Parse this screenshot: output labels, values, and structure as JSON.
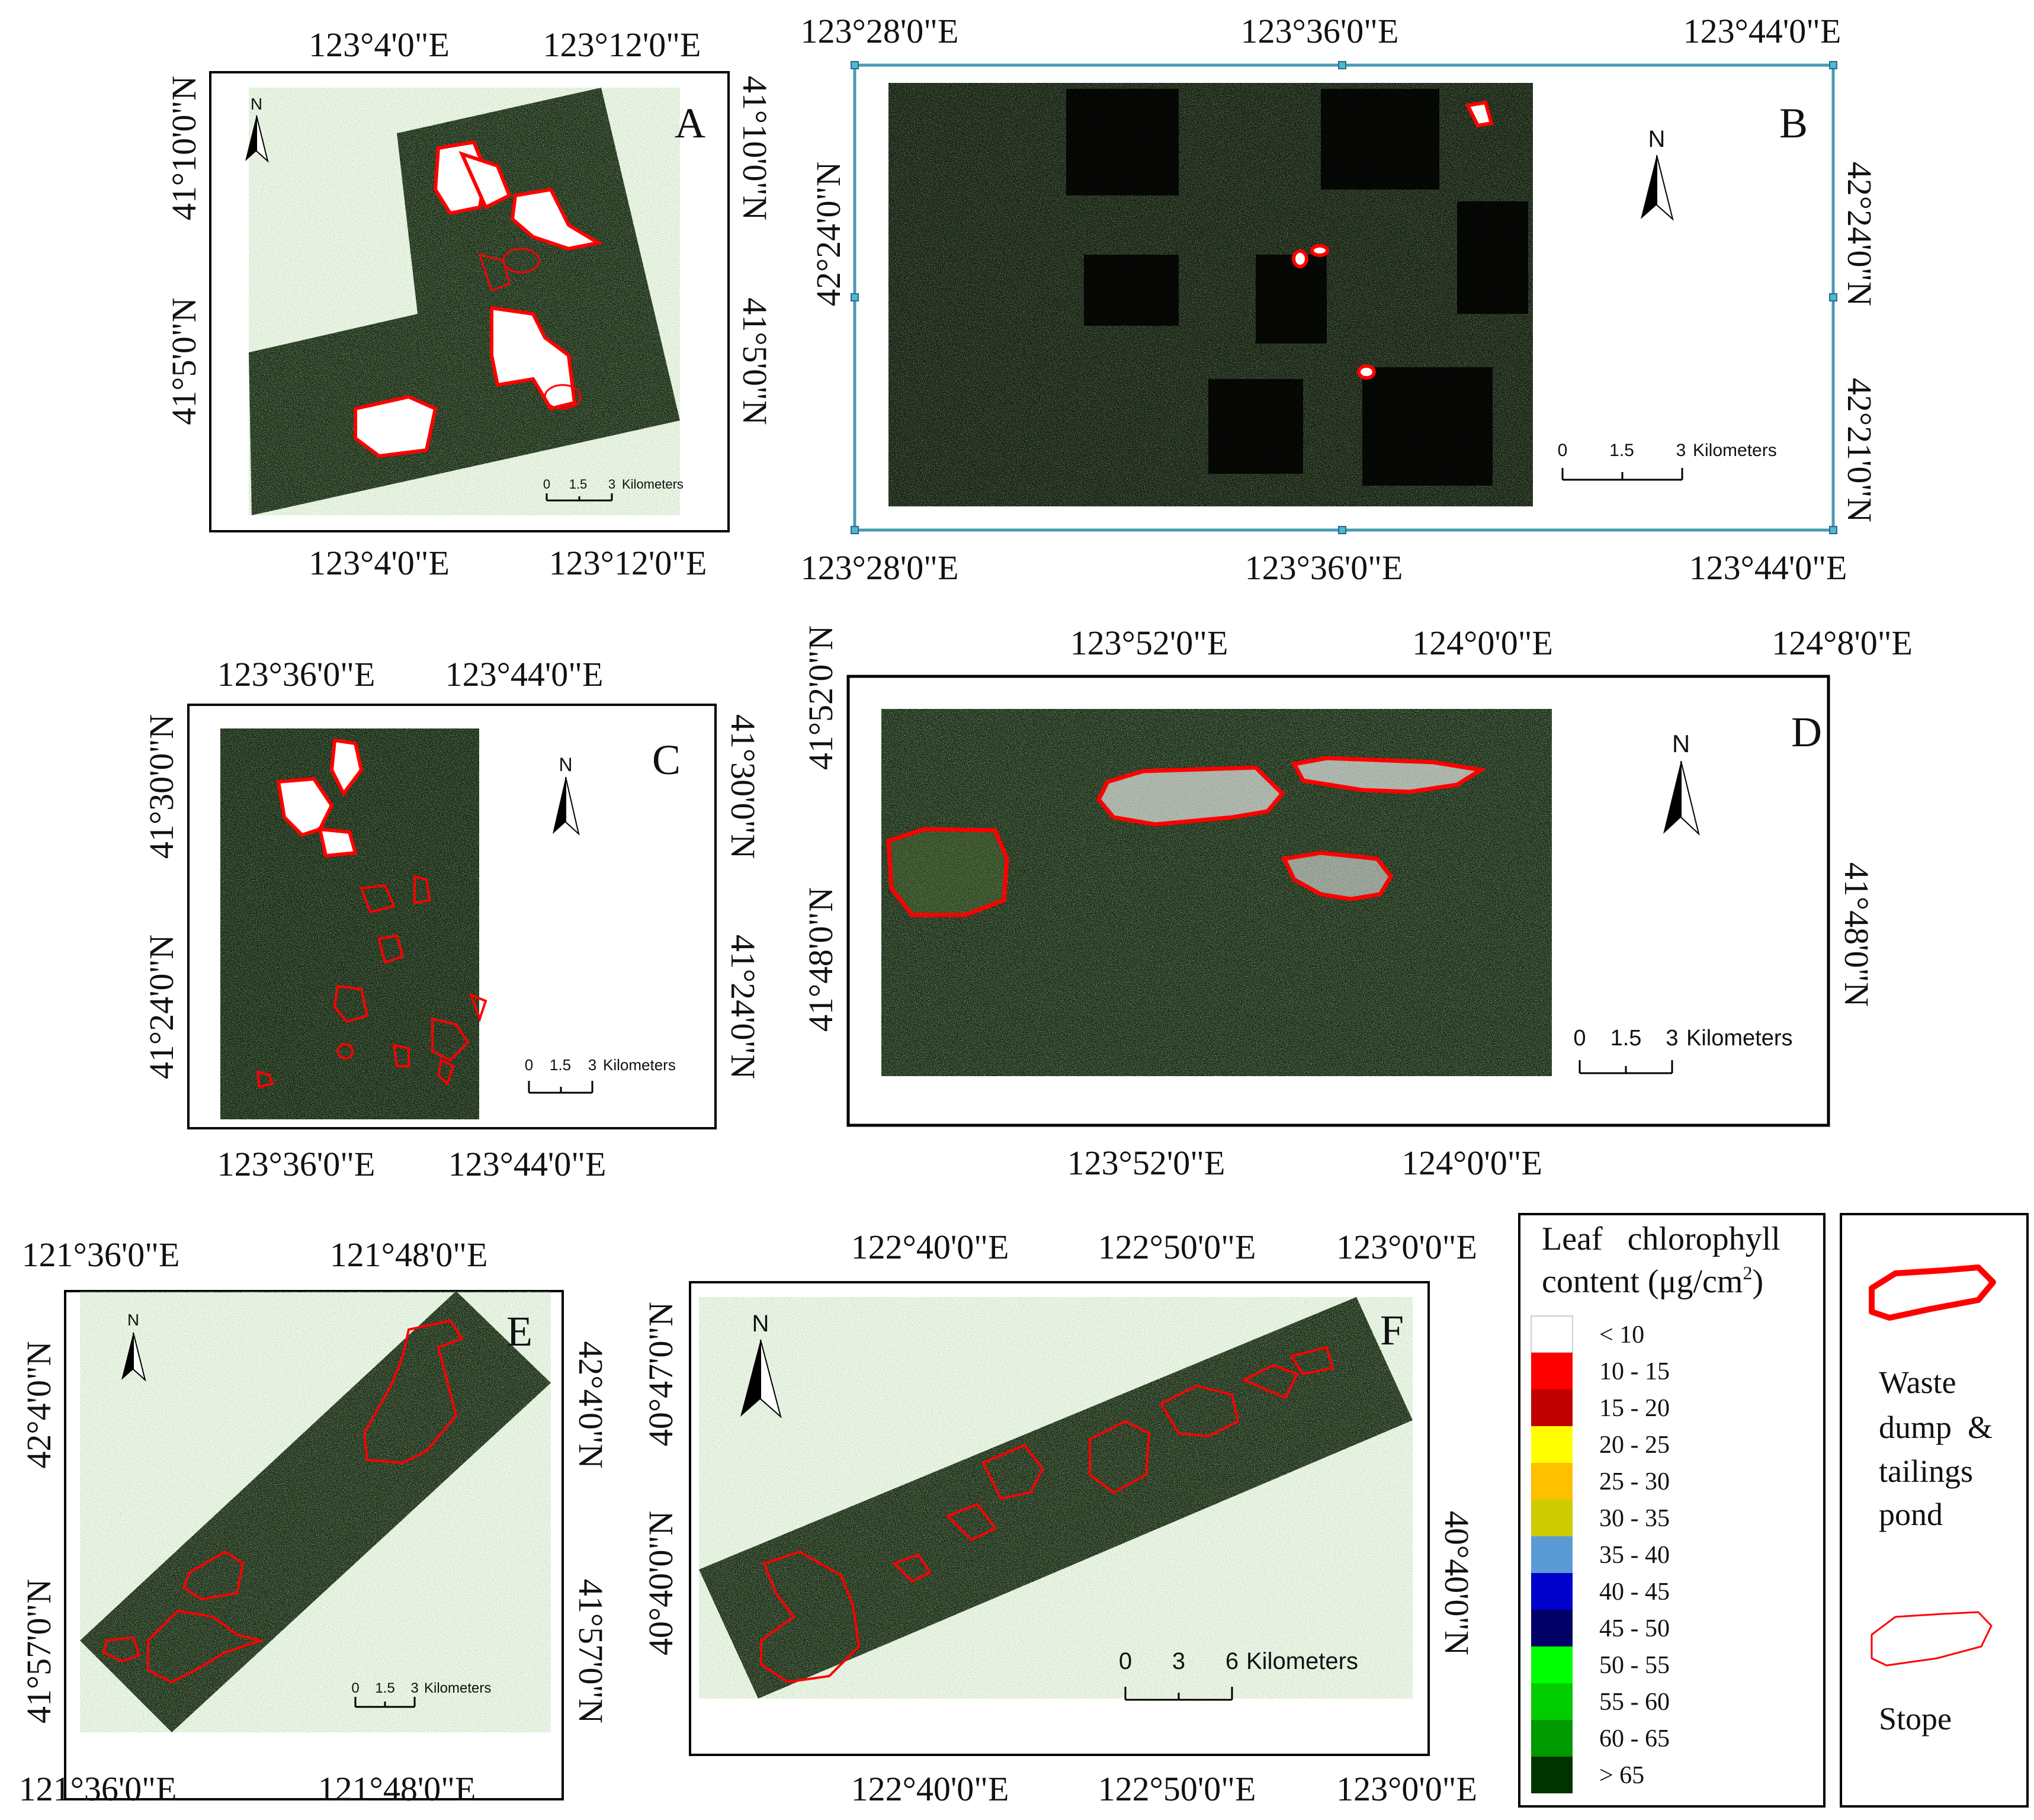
{
  "panels": [
    {
      "id": "A",
      "north": "N",
      "top_labels": [
        "123°4'0\"E",
        "123°12'0\"E"
      ],
      "bottom_labels": [
        "123°4'0\"E",
        "123°12'0\"E"
      ],
      "left_labels": [
        "41°10'0\"N",
        "41°5'0\"N"
      ],
      "right_labels": [
        "41°10'0\"N",
        "41°5'0\"N"
      ],
      "scale": {
        "ticks": [
          "0",
          "1.5",
          "3"
        ],
        "unit": "Kilometers"
      }
    },
    {
      "id": "B",
      "north": "N",
      "top_labels": [
        "123°28'0\"E",
        "123°36'0\"E",
        "123°44'0\"E"
      ],
      "bottom_labels": [
        "123°28'0\"E",
        "123°36'0\"E",
        "123°44'0\"E"
      ],
      "left_labels": [
        "42°24'0\"N"
      ],
      "right_labels": [
        "42°24'0\"N",
        "42°21'0\"N"
      ],
      "scale": {
        "ticks": [
          "0",
          "1.5",
          "3"
        ],
        "unit": "Kilometers"
      }
    },
    {
      "id": "C",
      "north": "N",
      "top_labels": [
        "123°36'0\"E",
        "123°44'0\"E"
      ],
      "bottom_labels": [
        "123°36'0\"E",
        "123°44'0\"E"
      ],
      "left_labels": [
        "41°30'0\"N",
        "41°24'0\"N"
      ],
      "right_labels": [
        "41°30'0\"N",
        "41°24'0\"N"
      ],
      "scale": {
        "ticks": [
          "0",
          "1.5",
          "3"
        ],
        "unit": "Kilometers"
      }
    },
    {
      "id": "D",
      "north": "N",
      "top_labels": [
        "123°52'0\"E",
        "124°0'0\"E",
        "124°8'0\"E"
      ],
      "bottom_labels": [
        "123°52'0\"E",
        "124°0'0\"E"
      ],
      "left_labels": [
        "41°52'0\"N",
        "41°48'0\"N"
      ],
      "right_labels": [
        "41°48'0\"N"
      ],
      "scale": {
        "ticks": [
          "0",
          "1.5",
          "3"
        ],
        "unit": "Kilometers"
      }
    },
    {
      "id": "E",
      "north": "N",
      "top_labels": [
        "121°36'0\"E",
        "121°48'0\"E"
      ],
      "bottom_labels": [
        "121°36'0\"E",
        "121°48'0\"E"
      ],
      "left_labels": [
        "42°4'0\"N",
        "41°57'0\"N"
      ],
      "right_labels": [
        "42°4'0\"N",
        "41°57'0\"N"
      ],
      "scale": {
        "ticks": [
          "0",
          "1.5",
          "3"
        ],
        "unit": "Kilometers"
      }
    },
    {
      "id": "F",
      "north": "N",
      "top_labels": [
        "122°40'0\"E",
        "122°50'0\"E",
        "123°0'0\"E"
      ],
      "bottom_labels": [
        "122°40'0\"E",
        "122°50'0\"E",
        "123°0'0\"E"
      ],
      "left_labels": [
        "40°47'0\"N",
        "40°40'0\"N"
      ],
      "right_labels": [
        "40°40'0\"N"
      ],
      "scale": {
        "ticks": [
          "0",
          "3",
          "6"
        ],
        "unit": "Kilometers"
      }
    }
  ],
  "legend": {
    "title_line1": "Leaf   chlorophyll",
    "title_line2": "content (μg/cm",
    "title_sup": "2",
    "title_close": ")",
    "classes": [
      {
        "label": "< 10",
        "color": "#ffffff"
      },
      {
        "label": "10 - 15",
        "color": "#ff0000"
      },
      {
        "label": "15 - 20",
        "color": "#c00000"
      },
      {
        "label": "20 - 25",
        "color": "#ffff00"
      },
      {
        "label": "25 - 30",
        "color": "#ffc000"
      },
      {
        "label": "30 - 35",
        "color": "#cccc00"
      },
      {
        "label": "35 - 40",
        "color": "#5b9bd5"
      },
      {
        "label": "40 - 45",
        "color": "#0000cc"
      },
      {
        "label": "45 - 50",
        "color": "#000066"
      },
      {
        "label": "50 - 55",
        "color": "#00ff00"
      },
      {
        "label": "55 - 60",
        "color": "#00cc00"
      },
      {
        "label": "60 - 65",
        "color": "#009900"
      },
      {
        "label": "> 65",
        "color": "#003300"
      }
    ]
  },
  "outline_key": {
    "waste_label": [
      "Waste",
      "dump  &",
      "tailings",
      "pond"
    ],
    "stope_label": "Stope"
  },
  "colors": {
    "boundary": "#ff0000",
    "image_dark": "#081008",
    "frame": "#000000"
  }
}
